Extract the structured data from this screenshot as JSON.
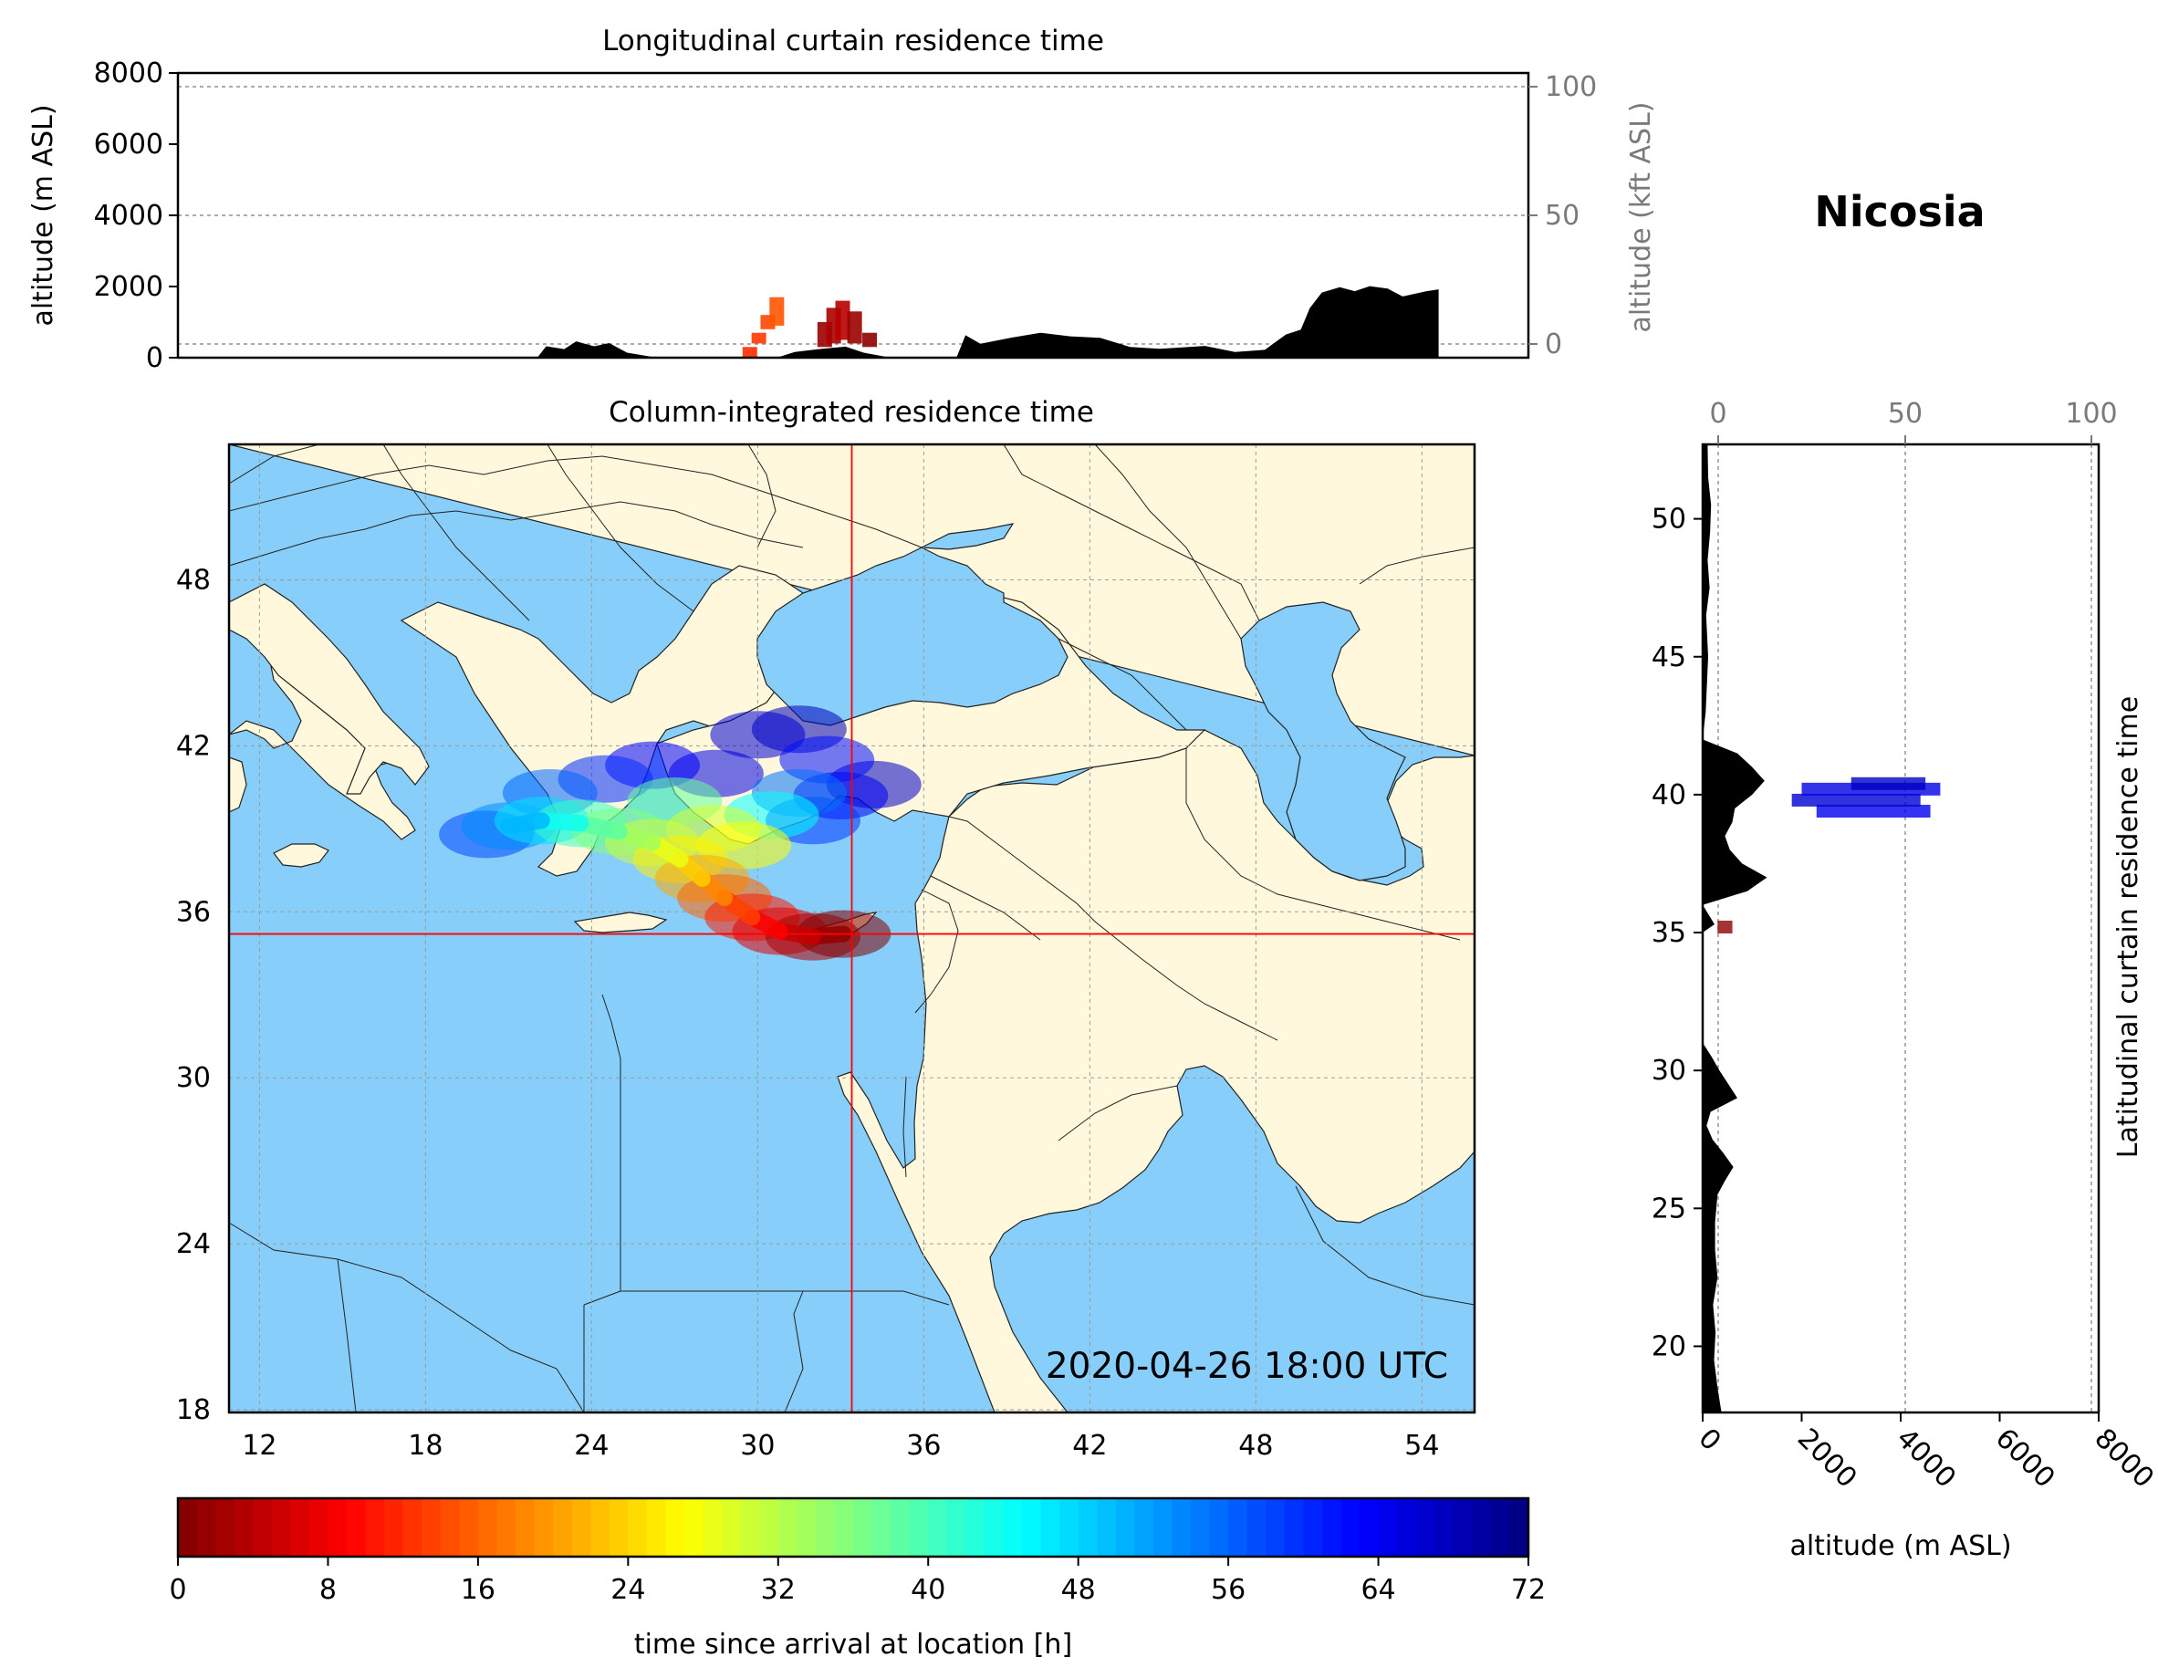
{
  "chart_data": [
    {
      "type": "area",
      "title": "Longitudinal curtain residence time",
      "xlabel": "",
      "ylabel": "altitude (m ASL)",
      "ylabel_right": "altitude (kft ASL)",
      "xlim": [
        10.2,
        55.3
      ],
      "ylim": [
        0,
        8000
      ],
      "yticks": [
        0,
        2000,
        4000,
        6000,
        8000
      ],
      "yticks_right": [
        0,
        50,
        100
      ],
      "grid": true,
      "terrain": {
        "x": [
          10.2,
          21.0,
          22.2,
          22.5,
          23.1,
          23.5,
          24.1,
          24.6,
          25.2,
          26.2,
          28.3,
          30.2,
          30.8,
          31.6,
          32.5,
          33.1,
          34.0,
          35.2,
          36.2,
          36.5,
          37.0,
          38.0,
          39.0,
          40.0,
          41.0,
          42.0,
          43.0,
          44.5,
          45.5,
          46.5,
          47.2,
          47.7,
          48.0,
          48.4,
          49.0,
          49.5,
          50.0,
          50.6,
          51.1,
          51.9,
          52.3,
          52.3,
          55.3
        ],
        "y": [
          0,
          0,
          0,
          320,
          240,
          460,
          320,
          410,
          140,
          0,
          0,
          0,
          160,
          240,
          310,
          140,
          0,
          0,
          0,
          630,
          390,
          560,
          700,
          600,
          560,
          300,
          250,
          330,
          160,
          220,
          650,
          790,
          1390,
          1830,
          1980,
          1870,
          2010,
          1940,
          1720,
          1870,
          1920,
          0,
          0
        ]
      },
      "series": [
        {
          "x": [
            29.3,
            29.6,
            29.9,
            30.2
          ],
          "alt_low": [
            0,
            400,
            800,
            900
          ],
          "alt_high": [
            300,
            700,
            1200,
            1700
          ],
          "time_h": [
            12,
            13,
            14,
            15
          ]
        },
        {
          "x": [
            31.8,
            32.1,
            32.4,
            32.8,
            33.3
          ],
          "alt_low": [
            300,
            400,
            500,
            400,
            300
          ],
          "alt_high": [
            1000,
            1400,
            1600,
            1300,
            700
          ],
          "time_h": [
            2,
            3,
            4,
            2,
            1
          ]
        }
      ]
    },
    {
      "type": "heatmap",
      "title": "Column-integrated residence time",
      "xlim": [
        10.9,
        55.9
      ],
      "ylim": [
        17.9,
        52.9
      ],
      "xticks": [
        12,
        18,
        24,
        30,
        36,
        42,
        48,
        54
      ],
      "yticks": [
        18,
        24,
        30,
        36,
        42,
        48
      ],
      "grid": true,
      "receptor": {
        "lon": 33.4,
        "lat": 35.2
      },
      "annotation": "2020-04-26 18:00 UTC",
      "ocean_color": "#87cefa",
      "land_color": "#fff8dc",
      "plume": [
        {
          "lon": 33.1,
          "lat": 35.2,
          "time_h": 0
        },
        {
          "lon": 32.0,
          "lat": 35.1,
          "time_h": 3
        },
        {
          "lon": 30.8,
          "lat": 35.3,
          "time_h": 7
        },
        {
          "lon": 29.8,
          "lat": 35.8,
          "time_h": 11
        },
        {
          "lon": 28.8,
          "lat": 36.5,
          "time_h": 16
        },
        {
          "lon": 28.0,
          "lat": 37.2,
          "time_h": 21
        },
        {
          "lon": 27.2,
          "lat": 37.9,
          "time_h": 26
        },
        {
          "lon": 26.2,
          "lat": 38.5,
          "time_h": 31
        },
        {
          "lon": 25.0,
          "lat": 38.9,
          "time_h": 36
        },
        {
          "lon": 23.6,
          "lat": 39.2,
          "time_h": 41
        },
        {
          "lon": 22.2,
          "lat": 39.3,
          "time_h": 47
        },
        {
          "lon": 21.0,
          "lat": 39.1,
          "time_h": 53
        },
        {
          "lon": 20.2,
          "lat": 38.8,
          "time_h": 58
        },
        {
          "lon": 22.5,
          "lat": 40.3,
          "time_h": 56
        },
        {
          "lon": 24.5,
          "lat": 40.8,
          "time_h": 60
        },
        {
          "lon": 26.2,
          "lat": 41.3,
          "time_h": 63
        },
        {
          "lon": 27.0,
          "lat": 40.0,
          "time_h": 38
        },
        {
          "lon": 28.4,
          "lat": 39.0,
          "time_h": 30
        },
        {
          "lon": 29.5,
          "lat": 38.4,
          "time_h": 27
        },
        {
          "lon": 30.5,
          "lat": 39.5,
          "time_h": 45
        },
        {
          "lon": 31.5,
          "lat": 40.3,
          "time_h": 55
        },
        {
          "lon": 32.5,
          "lat": 41.5,
          "time_h": 62
        },
        {
          "lon": 30.0,
          "lat": 42.4,
          "time_h": 66
        },
        {
          "lon": 31.5,
          "lat": 42.6,
          "time_h": 68
        },
        {
          "lon": 33.0,
          "lat": 40.2,
          "time_h": 64
        },
        {
          "lon": 34.2,
          "lat": 40.6,
          "time_h": 67
        },
        {
          "lon": 32.0,
          "lat": 39.3,
          "time_h": 59
        },
        {
          "lon": 28.5,
          "lat": 41.0,
          "time_h": 65
        }
      ]
    },
    {
      "type": "area",
      "title": "Nicosia",
      "ylabel_right": "Latitudinal curtain residence time",
      "xlabel": "altitude (m ASL)",
      "xlim": [
        0,
        8000
      ],
      "xticks": [
        0,
        2000,
        4000,
        6000,
        8000
      ],
      "xticks_top": [
        0,
        50,
        100
      ],
      "ylim": [
        17.6,
        52.7
      ],
      "yticks": [
        20,
        25,
        30,
        35,
        40,
        45,
        50
      ],
      "grid": true,
      "terrain": {
        "lat": [
          17.6,
          18.5,
          19.5,
          20.5,
          21.5,
          22.5,
          23.5,
          24.5,
          25.5,
          26.0,
          26.5,
          27.0,
          27.5,
          28.0,
          28.5,
          29.0,
          29.5,
          30.0,
          30.5,
          31.0,
          32.0,
          34.0,
          35.0,
          35.3,
          36.0,
          36.5,
          37.0,
          37.5,
          38.0,
          38.5,
          39.0,
          39.5,
          40.0,
          40.5,
          41.0,
          41.5,
          42.0,
          43.0,
          45.0,
          46.5,
          47.5,
          48.5,
          49.5,
          50.5,
          51.5,
          52.7
        ],
        "alt": [
          380,
          300,
          230,
          260,
          210,
          300,
          250,
          250,
          300,
          450,
          620,
          420,
          200,
          80,
          160,
          700,
          520,
          340,
          180,
          0,
          0,
          0,
          0,
          240,
          0,
          900,
          1300,
          800,
          550,
          450,
          600,
          650,
          1000,
          1250,
          1000,
          700,
          0,
          60,
          110,
          70,
          140,
          100,
          150,
          170,
          110,
          100
        ]
      },
      "series": [
        {
          "lat": [
            39.4,
            39.8,
            40.2,
            40.4
          ],
          "alt_low": [
            2300,
            1800,
            2000,
            3000
          ],
          "alt_high": [
            4600,
            4400,
            4800,
            4500
          ],
          "time_h": [
            64,
            66,
            65,
            67
          ]
        },
        {
          "lat": [
            35.2
          ],
          "alt_low": [
            300
          ],
          "alt_high": [
            600
          ],
          "time_h": [
            1
          ]
        }
      ]
    }
  ],
  "colorbar": {
    "label": "time since arrival at location [h]",
    "min": 0,
    "max": 72,
    "ticks": [
      0,
      8,
      16,
      24,
      32,
      40,
      48,
      56,
      64,
      72
    ],
    "colormap": "jet_r",
    "colors": [
      "#800000",
      "#ff0000",
      "#ff8000",
      "#ffff00",
      "#80ff80",
      "#00ffff",
      "#0080ff",
      "#0000ff",
      "#000080"
    ]
  }
}
